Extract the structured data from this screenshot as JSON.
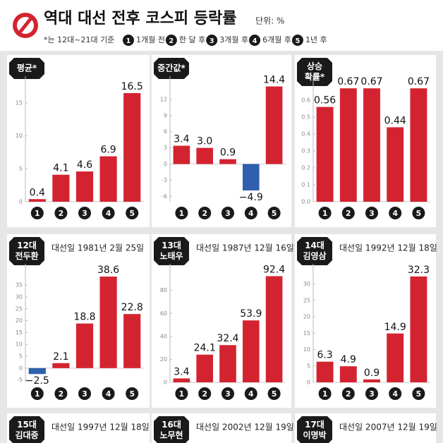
{
  "header": {
    "title": "역대 대선 전후 코스피 등락률",
    "unit": "단위: %",
    "note": "*는 12대~21대 기준",
    "legend": [
      {
        "num": "1",
        "text": "1개월 전"
      },
      {
        "num": "2",
        "text": "한 달 후"
      },
      {
        "num": "3",
        "text": "3개월 후"
      },
      {
        "num": "4",
        "text": "6개월 후"
      },
      {
        "num": "5",
        "text": "1년 후"
      }
    ]
  },
  "chart_data": [
    {
      "type": "bar",
      "label": [
        "평균*"
      ],
      "categories": [
        "1",
        "2",
        "3",
        "4",
        "5"
      ],
      "values": [
        0.4,
        4.1,
        4.6,
        6.9,
        16.5
      ],
      "ylim": [
        0,
        18
      ],
      "yticks": [
        0,
        5,
        10,
        15
      ],
      "color": "#d42330",
      "negative_color": "#2f5fae"
    },
    {
      "type": "bar",
      "label": [
        "중간값*"
      ],
      "categories": [
        "1",
        "2",
        "3",
        "4",
        "5"
      ],
      "values": [
        3.4,
        3.0,
        0.9,
        -4.9,
        14.4
      ],
      "value_labels": [
        "3.4",
        "3.0",
        "0.9",
        "−4.9",
        "14.4"
      ],
      "ylim": [
        -7,
        15
      ],
      "yticks": [
        -6,
        -3,
        0,
        3,
        6,
        9,
        12
      ],
      "color": "#d42330",
      "negative_color": "#2f5fae"
    },
    {
      "type": "bar",
      "label": [
        "상승",
        "확률*"
      ],
      "categories": [
        "1",
        "2",
        "3",
        "4",
        "5"
      ],
      "values": [
        0.56,
        0.67,
        0.67,
        0.44,
        0.67
      ],
      "ylim": [
        0,
        0.7
      ],
      "yticks": [
        {
          "value": 0,
          "label": "0.0"
        },
        0.1,
        0.2,
        0.3,
        0.4,
        0.5,
        0.6
      ],
      "color": "#d42330",
      "negative_color": "#2f5fae"
    },
    {
      "type": "bar",
      "label": [
        "12대",
        "전두환"
      ],
      "subtitle": "대선일 1981년 2월 25일",
      "categories": [
        "1",
        "2",
        "3",
        "4",
        "5"
      ],
      "values": [
        -2.5,
        2.1,
        18.8,
        38.6,
        22.8
      ],
      "value_labels": [
        "−2.5",
        "2.1",
        "18.8",
        "38.6",
        "22.8"
      ],
      "ylim": [
        -6,
        41
      ],
      "yticks": [
        -5,
        0,
        5,
        10,
        15,
        20,
        25,
        30,
        35
      ],
      "color": "#d42330",
      "negative_color": "#2f5fae"
    },
    {
      "type": "bar",
      "label": [
        "13대",
        "노태우"
      ],
      "subtitle": "대선일 1987년 12월 16일",
      "categories": [
        "1",
        "2",
        "3",
        "4",
        "5"
      ],
      "values": [
        3.4,
        24.1,
        32.4,
        53.9,
        92.4
      ],
      "ylim": [
        0,
        97
      ],
      "yticks": [
        0,
        20,
        40,
        60,
        80
      ],
      "color": "#d42330",
      "negative_color": "#2f5fae"
    },
    {
      "type": "bar",
      "label": [
        "14대",
        "김영삼"
      ],
      "subtitle": "대선일 1992년 12월 18일",
      "categories": [
        "1",
        "2",
        "3",
        "4",
        "5"
      ],
      "values": [
        6.3,
        4.9,
        0.9,
        14.9,
        32.3
      ],
      "ylim": [
        0,
        34
      ],
      "yticks": [
        0,
        5,
        10,
        15,
        20,
        25,
        30
      ],
      "color": "#d42330",
      "negative_color": "#2f5fae"
    }
  ],
  "more_panels": [
    {
      "label": [
        "15대",
        "김대중"
      ],
      "subtitle": "대선일 1997년 12월 18일"
    },
    {
      "label": [
        "16대",
        "노무현"
      ],
      "subtitle": "대선일 2002년 12월 19일"
    },
    {
      "label": [
        "17대",
        "이명박"
      ],
      "subtitle": "대선일 2007년 12월 19일"
    }
  ]
}
